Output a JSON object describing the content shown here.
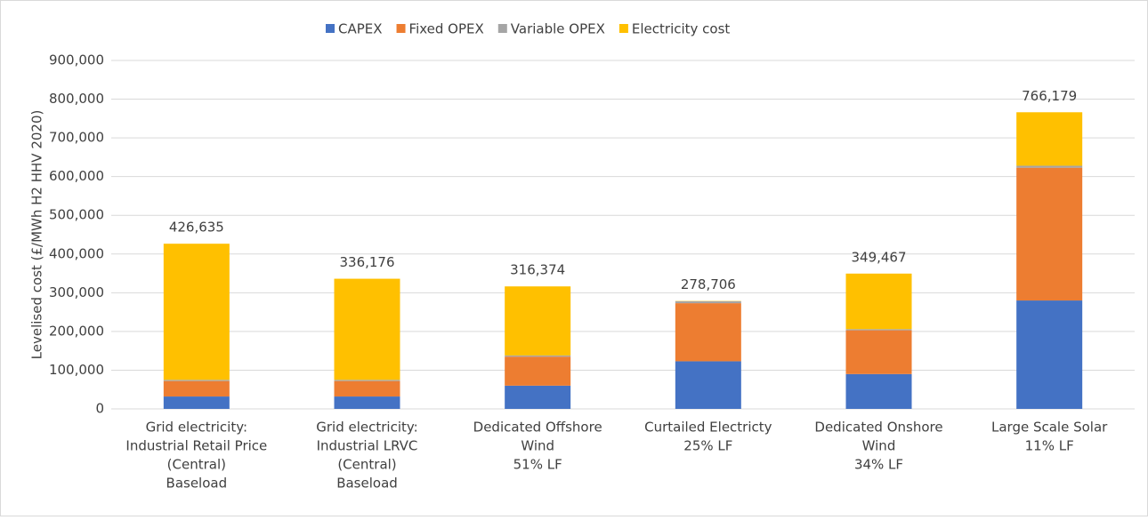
{
  "chart_data": {
    "type": "stacked_bar",
    "y_label": "Levelised cost (£/MWh H2 HHV 2020)",
    "categories": [
      [
        "Grid electricity:",
        "Industrial Retail  Price",
        "(Central)",
        "Baseload"
      ],
      [
        "Grid electricity:",
        "Industrial LRVC",
        "(Central)",
        "Baseload"
      ],
      [
        "Dedicated Offshore",
        "Wind",
        "51% LF"
      ],
      [
        "Curtailed Electricty",
        "25% LF"
      ],
      [
        "Dedicated Onshore",
        "Wind",
        "34% LF"
      ],
      [
        "Large Scale Solar",
        "11% LF"
      ]
    ],
    "series": [
      {
        "name": "CAPEX",
        "color": "#4472c4",
        "values": [
          32000,
          32000,
          60000,
          123000,
          90000,
          280000
        ]
      },
      {
        "name": "Fixed OPEX",
        "color": "#ed7d31",
        "values": [
          40000,
          40000,
          75000,
          150000,
          113000,
          343000
        ]
      },
      {
        "name": "Variable OPEX",
        "color": "#a5a5a5",
        "values": [
          3000,
          3000,
          3000,
          5000,
          3000,
          5000
        ]
      },
      {
        "name": "Electricity cost",
        "color": "#ffc000",
        "values": [
          351635,
          261176,
          178374,
          706,
          143467,
          138179
        ]
      }
    ],
    "totals": {
      "values": [
        426635,
        336176,
        316374,
        278706,
        349467,
        766179
      ],
      "value_labels": [
        "426,635",
        "336,176",
        "316,374",
        "278,706",
        "349,467",
        "766,179"
      ]
    },
    "ylim": [
      0,
      900000
    ],
    "yticks": [
      0,
      {
        "value": 100000,
        "label": "100,000"
      },
      {
        "value": 200000,
        "label": "200,000"
      },
      {
        "value": 300000,
        "label": "300,000"
      },
      {
        "value": 400000,
        "label": "400,000"
      },
      {
        "value": 500000,
        "label": "500,000"
      },
      {
        "value": 600000,
        "label": "600,000"
      },
      {
        "value": 700000,
        "label": "700,000"
      },
      {
        "value": 800000,
        "label": "800,000"
      },
      {
        "value": 900000,
        "label": "900,000"
      }
    ],
    "grid": true,
    "legend": "top"
  }
}
